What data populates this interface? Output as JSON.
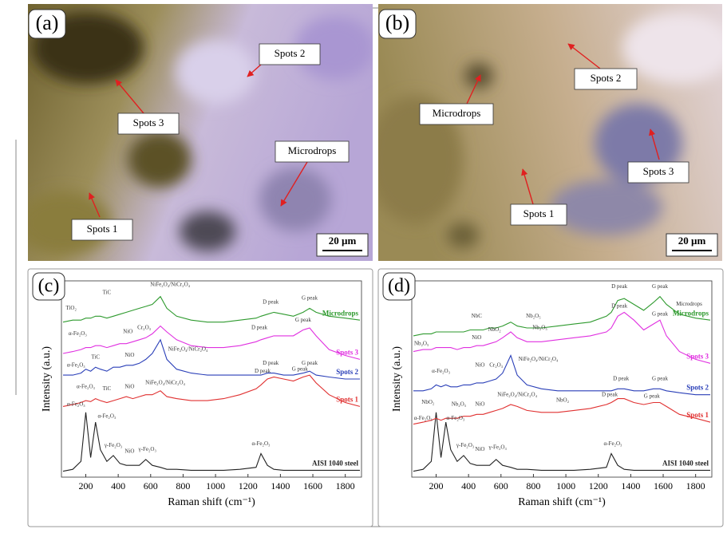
{
  "images": [
    {
      "panel": "(a)",
      "scale_bar": "20 µm",
      "callouts": [
        "Spots 2",
        "Spots 3",
        "Microdrops",
        "Spots 1"
      ]
    },
    {
      "panel": "(b)",
      "scale_bar": "20 µm",
      "callouts": [
        "Spots 2",
        "Microdrops",
        "Spots 3",
        "Spots 1"
      ]
    }
  ],
  "chart_data": [
    {
      "type": "line",
      "panel": "(c)",
      "x_label": "Raman shift (cm⁻¹)",
      "y_label": "Intensity (a.u.)",
      "xlim": [
        50,
        1900
      ],
      "xticks": [
        200,
        400,
        600,
        800,
        1000,
        1200,
        1400,
        1600,
        1800
      ],
      "ylim": [
        0,
        100
      ],
      "x": [
        60,
        120,
        170,
        200,
        230,
        260,
        290,
        330,
        370,
        410,
        450,
        490,
        530,
        570,
        610,
        660,
        700,
        760,
        850,
        950,
        1050,
        1150,
        1250,
        1280,
        1320,
        1360,
        1420,
        1480,
        1540,
        1580,
        1620,
        1700,
        1800,
        1890
      ],
      "series": [
        {
          "name": "AISI 1040 steel",
          "color": "#222222",
          "values": [
            3,
            4,
            8,
            33,
            10,
            28,
            14,
            8,
            11,
            7,
            6,
            6,
            6,
            9,
            6,
            5,
            4,
            4,
            3.5,
            3.5,
            3.5,
            4,
            5,
            12,
            6,
            4,
            3.5,
            3.5,
            3.5,
            3.5,
            3.5,
            3.5,
            3.5,
            3.5
          ]
        },
        {
          "name": "Spots 1",
          "color": "#e03030",
          "values": [
            36,
            37,
            38,
            39,
            38.5,
            40,
            39,
            38,
            39,
            40,
            41,
            40,
            41,
            42,
            42,
            44,
            41,
            40,
            39,
            39,
            40,
            42,
            45,
            47,
            50,
            51,
            50,
            49,
            51,
            52,
            48,
            42,
            38,
            36
          ]
        },
        {
          "name": "Spots 2",
          "color": "#2a3fb8",
          "values": [
            52,
            52,
            53,
            55,
            54,
            56,
            55,
            54,
            56,
            56,
            57,
            57,
            58,
            60,
            63,
            70,
            60,
            55,
            53,
            52,
            52,
            52,
            52,
            52,
            53,
            53,
            52,
            52,
            53,
            54,
            52,
            51,
            50,
            50
          ]
        },
        {
          "name": "Spots 3",
          "color": "#e030e0",
          "values": [
            63,
            64,
            65,
            66,
            66,
            67,
            67,
            66,
            67,
            68,
            68,
            69,
            70,
            71,
            73,
            77,
            74,
            70,
            67,
            66,
            66,
            67,
            69,
            70,
            71,
            72,
            72,
            72,
            75,
            76,
            72,
            65,
            62,
            60
          ]
        },
        {
          "name": "Microdrops",
          "color": "#2e9a2e",
          "values": [
            79,
            80,
            80,
            81,
            81,
            82,
            82,
            81,
            82,
            83,
            84,
            85,
            86,
            87,
            88,
            92,
            86,
            82,
            80,
            79,
            79,
            80,
            81,
            82,
            83,
            84,
            83,
            82,
            84,
            86,
            84,
            82,
            81,
            80
          ]
        }
      ],
      "annotations": [
        {
          "text": "α-Fe₂O₃",
          "x": 140,
          "y": 37
        },
        {
          "text": "α-Fe₂O₃",
          "x": 330,
          "y": 31
        },
        {
          "text": "γ-Fe₂O₃",
          "x": 370,
          "y": 16
        },
        {
          "text": "NiO",
          "x": 470,
          "y": 13
        },
        {
          "text": "γ-Fe₂O₃",
          "x": 580,
          "y": 14
        },
        {
          "text": "α-Fe₂O₃",
          "x": 1280,
          "y": 17
        },
        {
          "text": "α-Fe₂O₃",
          "x": 200,
          "y": 46
        },
        {
          "text": "TiC",
          "x": 330,
          "y": 45
        },
        {
          "text": "NiO",
          "x": 470,
          "y": 46
        },
        {
          "text": "NiFe₂O₄/NiCr₂O₄",
          "x": 690,
          "y": 48
        },
        {
          "text": "D peak",
          "x": 1290,
          "y": 54
        },
        {
          "text": "G peak",
          "x": 1520,
          "y": 55
        },
        {
          "text": "α-Fe₂O₃",
          "x": 140,
          "y": 57
        },
        {
          "text": "TiC",
          "x": 260,
          "y": 61
        },
        {
          "text": "NiO",
          "x": 470,
          "y": 62
        },
        {
          "text": "NiFe₂O₄/NiCr₂O₄",
          "x": 830,
          "y": 65
        },
        {
          "text": "D peak",
          "x": 1340,
          "y": 58
        },
        {
          "text": "G peak",
          "x": 1580,
          "y": 58
        },
        {
          "text": "α-Fe₂O₃",
          "x": 150,
          "y": 73
        },
        {
          "text": "NiO",
          "x": 460,
          "y": 74
        },
        {
          "text": "Cr₂O₃",
          "x": 560,
          "y": 76
        },
        {
          "text": "D peak",
          "x": 1270,
          "y": 76
        },
        {
          "text": "G peak",
          "x": 1540,
          "y": 80
        },
        {
          "text": "TiO₂",
          "x": 110,
          "y": 86
        },
        {
          "text": "TiC",
          "x": 330,
          "y": 94
        },
        {
          "text": "NiFe₂O₄/NiCr₂O₄",
          "x": 720,
          "y": 98
        },
        {
          "text": "D peak",
          "x": 1340,
          "y": 89
        },
        {
          "text": "G peak",
          "x": 1580,
          "y": 91
        }
      ]
    },
    {
      "type": "line",
      "panel": "(d)",
      "x_label": "Raman shift (cm⁻¹)",
      "y_label": "Intensity (a.u.)",
      "xlim": [
        50,
        1900
      ],
      "xticks": [
        200,
        400,
        600,
        800,
        1000,
        1200,
        1400,
        1600,
        1800
      ],
      "ylim": [
        0,
        100
      ],
      "x": [
        60,
        120,
        170,
        200,
        230,
        260,
        290,
        330,
        370,
        410,
        450,
        490,
        530,
        570,
        610,
        660,
        700,
        760,
        850,
        950,
        1050,
        1150,
        1250,
        1280,
        1320,
        1360,
        1420,
        1480,
        1540,
        1580,
        1620,
        1700,
        1800,
        1890
      ],
      "series": [
        {
          "name": "AISI 1040 steel",
          "color": "#222222",
          "values": [
            3,
            4,
            8,
            33,
            10,
            28,
            14,
            8,
            11,
            7,
            6,
            6,
            6,
            9,
            6,
            5,
            4,
            4,
            3.5,
            3.5,
            3.5,
            4,
            5,
            12,
            6,
            4,
            3.5,
            3.5,
            3.5,
            3.5,
            3.5,
            3.5,
            3.5,
            3.5
          ]
        },
        {
          "name": "Spots 1",
          "color": "#e03030",
          "values": [
            27,
            28,
            29,
            30,
            29,
            30,
            30,
            30,
            31,
            31,
            32,
            32,
            33,
            34,
            35,
            37,
            36,
            34,
            33,
            33,
            34,
            35,
            37,
            38,
            40,
            40,
            38,
            37,
            38,
            38,
            36,
            32,
            30,
            28
          ]
        },
        {
          "name": "Spots 2",
          "color": "#2a3fb8",
          "values": [
            44,
            44,
            45,
            47,
            46,
            47,
            46,
            46,
            47,
            47,
            48,
            48,
            49,
            50,
            53,
            62,
            52,
            47,
            45,
            44,
            44,
            44,
            44,
            44,
            45,
            45,
            44,
            44,
            45,
            45,
            44,
            43,
            42,
            42
          ]
        },
        {
          "name": "Spots 3",
          "color": "#e030e0",
          "values": [
            64,
            65,
            65,
            66,
            66,
            66,
            66,
            65,
            66,
            66,
            67,
            67,
            68,
            69,
            71,
            74,
            71,
            69,
            69,
            70,
            71,
            72,
            74,
            76,
            82,
            84,
            80,
            75,
            78,
            80,
            72,
            64,
            60,
            58
          ]
        },
        {
          "name": "Microdrops",
          "color": "#2e9a2e",
          "values": [
            72,
            73,
            73,
            74,
            74,
            74,
            74,
            74,
            74,
            75,
            75,
            75,
            76,
            76,
            77,
            79,
            77,
            76,
            76,
            77,
            78,
            79,
            82,
            84,
            90,
            91,
            88,
            85,
            89,
            92,
            88,
            83,
            81,
            80
          ]
        }
      ],
      "annotations": [
        {
          "text": "α-Fe₂O₃",
          "x": 120,
          "y": 30
        },
        {
          "text": "α-Fe₂O₃",
          "x": 320,
          "y": 30
        },
        {
          "text": "γ-Fe₂O₃",
          "x": 380,
          "y": 16
        },
        {
          "text": "NiO",
          "x": 470,
          "y": 14
        },
        {
          "text": "γ-Fe₂O₃",
          "x": 580,
          "y": 15
        },
        {
          "text": "α-Fe₂O₃",
          "x": 1290,
          "y": 17
        },
        {
          "text": "NbO₂",
          "x": 150,
          "y": 38
        },
        {
          "text": "Nb₂O₅",
          "x": 340,
          "y": 37
        },
        {
          "text": "NiO",
          "x": 470,
          "y": 37
        },
        {
          "text": "NiFe₂O₄/NiCr₂O₄",
          "x": 700,
          "y": 42
        },
        {
          "text": "NbO₂",
          "x": 980,
          "y": 39
        },
        {
          "text": "D peak",
          "x": 1270,
          "y": 42
        },
        {
          "text": "G peak",
          "x": 1530,
          "y": 41
        },
        {
          "text": "α-Fe₂O₃",
          "x": 230,
          "y": 54
        },
        {
          "text": "NiO",
          "x": 470,
          "y": 57
        },
        {
          "text": "Cr₂O₃",
          "x": 570,
          "y": 57
        },
        {
          "text": "NiFe₂O₄/NiCr₂O₄",
          "x": 830,
          "y": 60
        },
        {
          "text": "D peak",
          "x": 1340,
          "y": 50
        },
        {
          "text": "G peak",
          "x": 1580,
          "y": 50
        },
        {
          "text": "Nb₂O₅",
          "x": 110,
          "y": 68
        },
        {
          "text": "NiO",
          "x": 450,
          "y": 71
        },
        {
          "text": "NbO₂",
          "x": 560,
          "y": 75
        },
        {
          "text": "Nb₂O₅",
          "x": 840,
          "y": 76
        },
        {
          "text": "D peak",
          "x": 1330,
          "y": 87
        },
        {
          "text": "G peak",
          "x": 1580,
          "y": 83
        },
        {
          "text": "NbC",
          "x": 450,
          "y": 82
        },
        {
          "text": "Nb₂O₅",
          "x": 800,
          "y": 82
        },
        {
          "text": "Microdrops",
          "x": 1760,
          "y": 88
        },
        {
          "text": "D peak",
          "x": 1330,
          "y": 97
        },
        {
          "text": "G peak",
          "x": 1580,
          "y": 97
        }
      ]
    }
  ]
}
